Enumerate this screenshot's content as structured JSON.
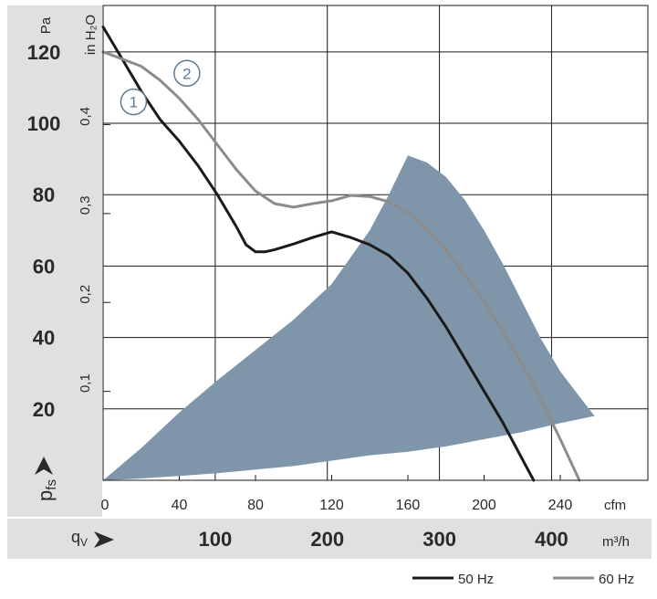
{
  "chart_data": {
    "type": "line",
    "title": "",
    "axes": {
      "pressure_pa": {
        "label": "Pa",
        "ticks": [
          20,
          40,
          60,
          80,
          100,
          120
        ],
        "range": [
          0,
          133
        ]
      },
      "pressure_inh2o": {
        "label": "in H₂O",
        "ticks": [
          "0,1",
          "0,2",
          "0,3",
          "0,4"
        ],
        "tick_values": [
          0.1,
          0.2,
          0.3,
          0.4
        ]
      },
      "flow_cfm": {
        "label": "cfm",
        "ticks": [
          0,
          40,
          80,
          120,
          160,
          200,
          240
        ],
        "range": [
          0,
          286
        ]
      },
      "flow_m3h": {
        "label": "m³/h",
        "ticks": [
          100,
          200,
          300,
          400
        ]
      }
    },
    "axis_symbols": {
      "pressure": "p",
      "pressure_sub": "fs",
      "flow": "q",
      "flow_sub": "V"
    },
    "series": [
      {
        "name": "50 Hz",
        "marker": "1",
        "color": "#1a1a1a",
        "x_cfm": [
          0,
          10,
          20,
          30,
          40,
          50,
          60,
          70,
          75,
          80,
          85,
          90,
          100,
          110,
          120,
          130,
          140,
          150,
          160,
          170,
          180,
          190,
          200,
          210,
          220,
          226
        ],
        "y_pa": [
          127,
          118,
          109,
          101,
          95,
          88,
          80,
          71,
          66,
          64,
          64,
          64.6,
          66.2,
          68,
          69.6,
          68,
          66,
          63,
          58,
          51,
          43,
          34,
          25,
          16,
          6,
          0
        ]
      },
      {
        "name": "60 Hz",
        "marker": "2",
        "color": "#8c8c8c",
        "x_cfm": [
          0,
          10,
          20,
          30,
          40,
          50,
          60,
          70,
          80,
          90,
          100,
          110,
          120,
          130,
          140,
          150,
          160,
          170,
          180,
          190,
          200,
          210,
          220,
          230,
          240,
          250
        ],
        "y_pa": [
          120,
          118,
          116,
          112,
          107,
          101,
          94,
          87,
          81,
          77.5,
          76.5,
          77.5,
          78.3,
          79.8,
          79.5,
          78,
          75,
          70.5,
          64.5,
          57.5,
          50,
          41.5,
          32.5,
          22.5,
          11.5,
          0
        ]
      }
    ],
    "operating_region": {
      "color": "#7e95aa",
      "x_cfm": [
        0,
        20,
        40,
        60,
        80,
        100,
        120,
        140,
        150,
        160,
        170,
        180,
        190,
        200,
        210,
        220,
        230,
        240,
        250,
        258,
        240,
        220,
        200,
        180,
        160,
        140,
        120,
        100,
        80,
        60,
        40,
        20,
        0
      ],
      "y_pa": [
        0,
        9,
        19,
        28,
        36.5,
        45,
        55,
        70,
        80,
        91,
        89,
        85,
        78.5,
        70,
        60.5,
        50,
        39.5,
        30.5,
        23.5,
        18,
        16,
        13.5,
        11.5,
        9.5,
        8,
        7,
        5.5,
        4,
        3,
        2,
        1.2,
        0.5,
        0
      ]
    },
    "circle_markers": [
      {
        "label": "1",
        "x_cfm": 16,
        "y_pa": 106
      },
      {
        "label": "2",
        "x_cfm": 44,
        "y_pa": 114
      }
    ],
    "grid": true,
    "legend": {
      "position": "bottom-right",
      "entries": [
        "50 Hz",
        "60 Hz"
      ]
    }
  }
}
